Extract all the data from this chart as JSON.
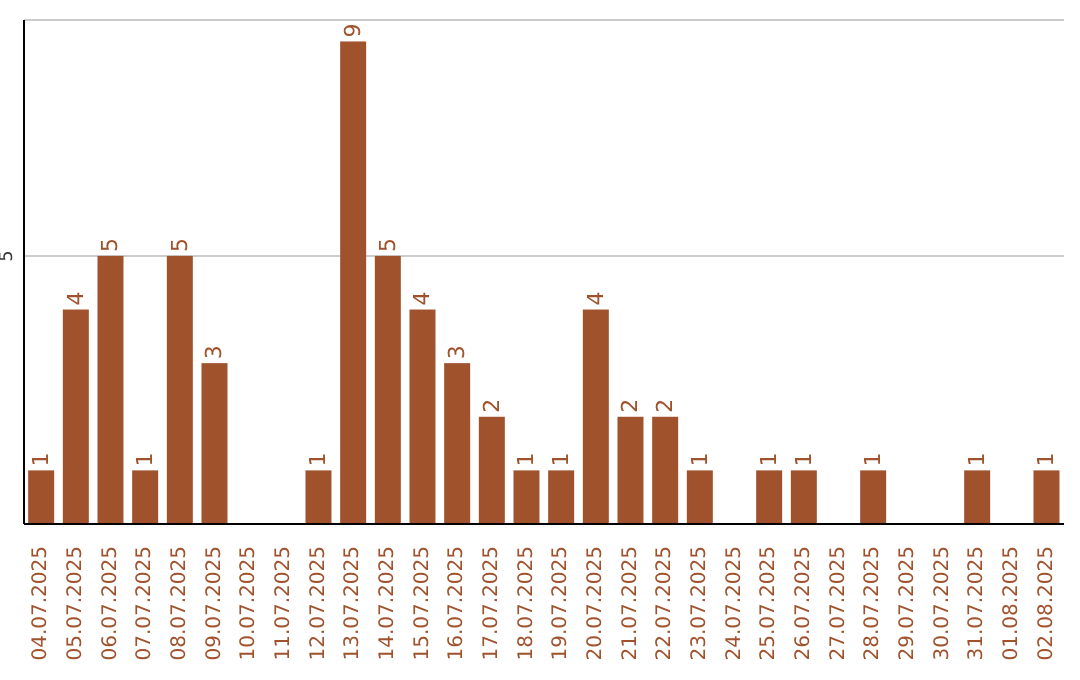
{
  "chart_data": {
    "type": "bar",
    "categories": [
      "04.07.2025",
      "05.07.2025",
      "06.07.2025",
      "07.07.2025",
      "08.07.2025",
      "09.07.2025",
      "10.07.2025",
      "11.07.2025",
      "12.07.2025",
      "13.07.2025",
      "14.07.2025",
      "15.07.2025",
      "16.07.2025",
      "17.07.2025",
      "18.07.2025",
      "19.07.2025",
      "20.07.2025",
      "21.07.2025",
      "22.07.2025",
      "23.07.2025",
      "24.07.2025",
      "25.07.2025",
      "26.07.2025",
      "27.07.2025",
      "28.07.2025",
      "29.07.2025",
      "30.07.2025",
      "31.07.2025",
      "01.08.2025",
      "02.08.2025"
    ],
    "values": [
      1,
      4,
      5,
      1,
      5,
      3,
      0,
      0,
      1,
      9,
      5,
      4,
      3,
      2,
      1,
      1,
      4,
      2,
      2,
      1,
      0,
      1,
      1,
      0,
      1,
      0,
      0,
      1,
      0,
      1
    ],
    "value_labels": [
      "1",
      "4",
      "5",
      "1",
      "5",
      "3",
      null,
      null,
      "1",
      "9",
      "5",
      "4",
      "3",
      "2",
      "1",
      "1",
      "4",
      "2",
      "2",
      "1",
      null,
      "1",
      "1",
      null,
      "1",
      null,
      null,
      "1",
      null,
      "1"
    ],
    "color": "#a0522d",
    "ylim": [
      0,
      9.4
    ],
    "yticks": [
      5
    ],
    "grid": "y"
  }
}
